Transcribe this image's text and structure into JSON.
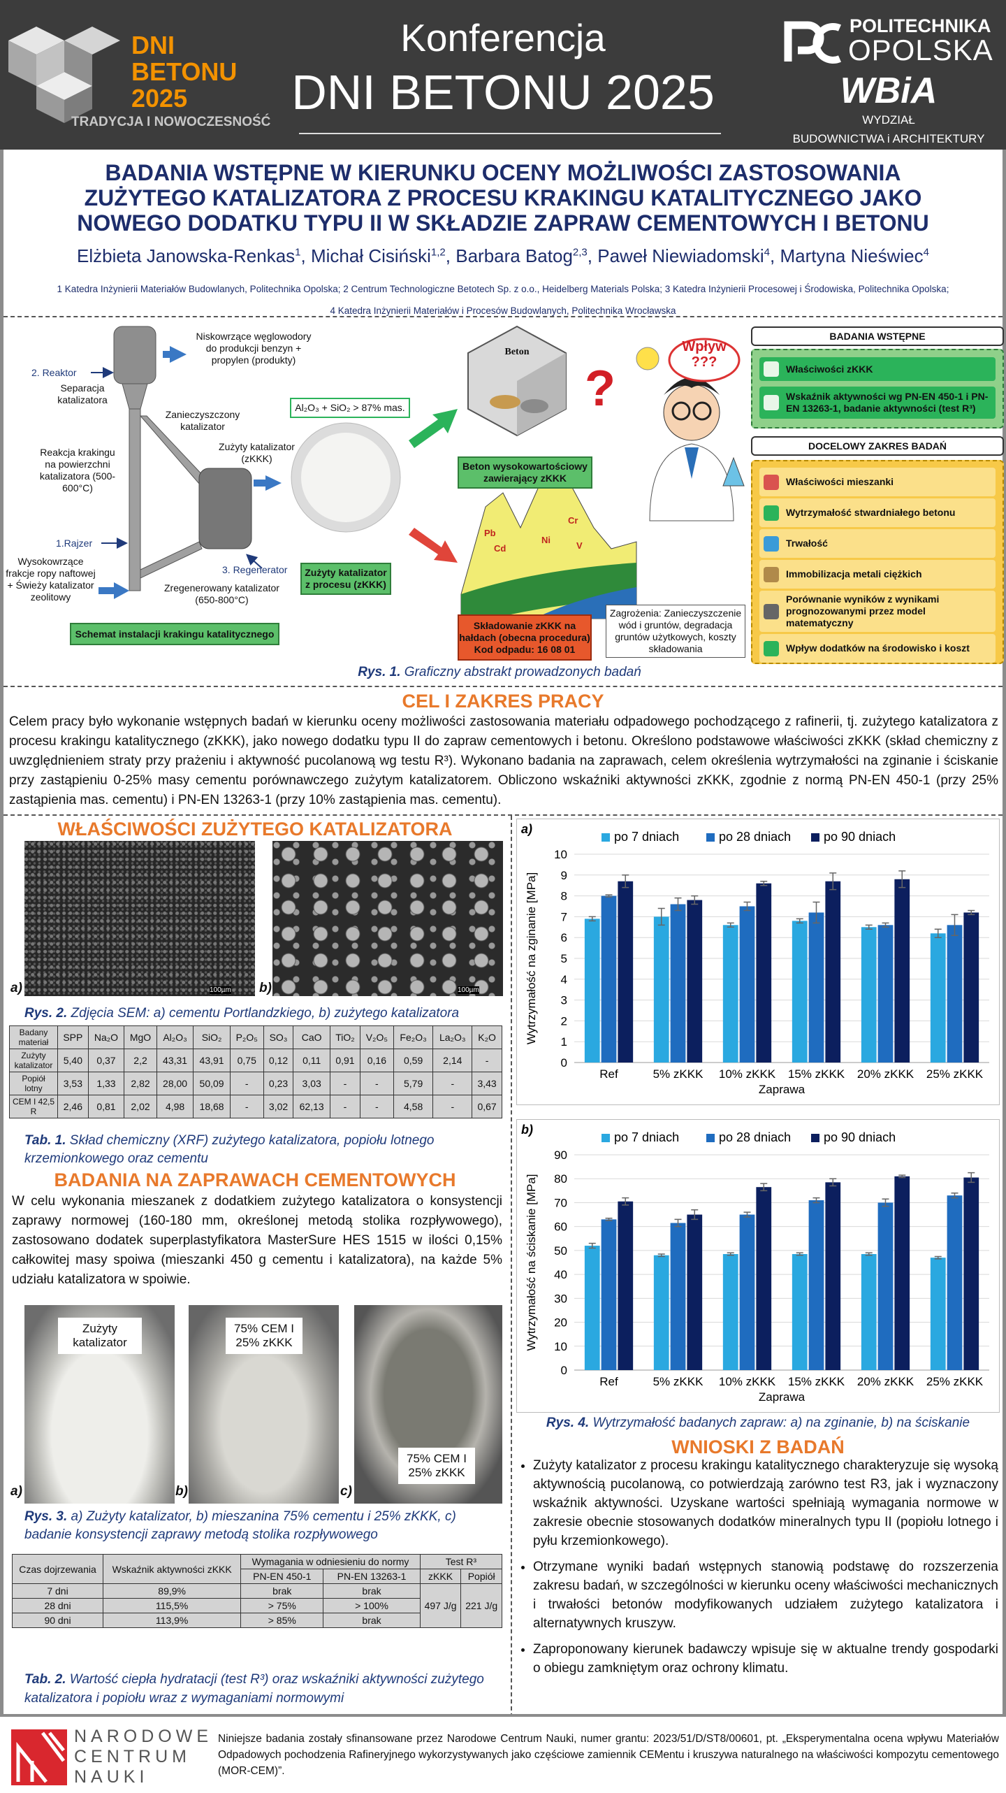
{
  "header": {
    "logo_line1": "DNI",
    "logo_line2": "BETONU",
    "logo_line3": "2025",
    "logo_tagline": "TRADYCJA I NOWOCZESNOŚĆ",
    "conf_line1": "Konferencja",
    "conf_line2": "DNI BETONU 2025",
    "univ_line1": "POLITECHNIKA",
    "univ_line2": "OPOLSKA",
    "faculty_logo": "WBiA",
    "faculty_line1": "WYDZIAŁ",
    "faculty_line2": "BUDOWNICTWA i ARCHITEKTURY"
  },
  "title": [
    "BADANIA WSTĘPNE W KIERUNKU OCENY MOŻLIWOŚCI ZASTOSOWANIA",
    "ZUŻYTEGO KATALIZATORA Z PROCESU KRAKINGU KATALITYCZNEGO JAKO",
    "NOWEGO DODATKU TYPU II W SKŁADZIE ZAPRAW CEMENTOWYCH I BETONU"
  ],
  "authors": [
    {
      "name": "Elżbieta Janowska-Renkas",
      "sup": "1",
      "sep": ","
    },
    {
      "name": "Michał Cisiński",
      "sup": "1,2",
      "sep": ","
    },
    {
      "name": "Barbara Batog",
      "sup": "2,3",
      "sep": ","
    },
    {
      "name": "Paweł Niewiadomski",
      "sup": "4",
      "sep": ","
    },
    {
      "name": "Martyna Nieświec",
      "sup": "4"
    }
  ],
  "affiliations": [
    "1 Katedra Inżynierii Materiałów Budowlanych, Politechnika Opolska; 2 Centrum Technologiczne Betotech Sp. z o.o., Heidelberg Materials Polska; 3 Katedra Inżynierii Procesowej i Środowiska, Politechnika Opolska;",
    "4 Katedra Inżynierii Materiałów i Procesów Budowlanych, Politechnika Wrocławska"
  ],
  "abstract": {
    "products": "Niskowrzące węglowodory do produkcji benzyn + propylen (produkty)",
    "reactor": "2. Reaktor",
    "separation": "Separacja katalizatora",
    "contaminated": "Zanieczyszczony katalizator",
    "reaction": "Reakcja krakingu na powierzchni katalizatora (500-600°C)",
    "spent": "Zużyty katalizator (zKKK)",
    "riser": "1.Rajzer",
    "regenerator": "3. Regenerator",
    "feed": "Wysokowrzące frakcje ropy naftowej + Świeży katalizator zeolitowy",
    "regenerated": "Zregenerowany katalizator (650-800°C)",
    "scheme": "Schemat instalacji krakingu katalitycznego",
    "composition": "Al₂O₃ + SiO₂ > 87% mas.",
    "spent_box": "Zużyty katalizator z procesu (zKKK)",
    "concrete": "Beton",
    "concrete_box": "Beton wysokowartościowy zawierający zKKK",
    "question": "?",
    "bubble1": "Wpływ",
    "bubble2": "???",
    "metals": [
      "Pb",
      "Cd",
      "Ni",
      "Cr",
      "V"
    ],
    "storage": "Składowanie zKKK na hałdach (obecna procedura)",
    "waste_code": "Kod odpadu: 16 08 01",
    "threats": "Zagrożenia: Zanieczyszczenie wód i gruntów, degradacja gruntów użytkowych, koszty składowania",
    "prelim_heading": "BADANIA WSTĘPNE",
    "prelim_items": [
      "Właściwości zKKK",
      "Wskaźnik aktywności wg PN-EN 450-1 i PN-EN 13263-1, badanie aktywności (test R³)"
    ],
    "target_heading": "DOCELOWY ZAKRES BADAŃ",
    "target_items": [
      "Właściwości mieszanki",
      "Wytrzymałość stwardniałego betonu",
      "Trwałość",
      "Immobilizacja metali ciężkich",
      "Porównanie wyników z wynikami prognozowanymi przez model matematyczny",
      "Wpływ dodatków na środowisko i koszt"
    ],
    "caption_label": "Rys. 1.",
    "caption": "Graficzny abstrakt prowadzonych badań"
  },
  "aim": {
    "heading": "CEL I ZAKRES PRACY",
    "text": "Celem pracy było wykonanie wstępnych badań w kierunku oceny możliwości zastosowania materiału odpadowego pochodzącego z rafinerii, tj. zużytego katalizatora z procesu krakingu katalitycznego (zKKK), jako nowego dodatku typu II do zapraw cementowych i betonu. Określono podstawowe właściwości zKKK (skład chemiczny z uwzględnieniem straty przy prażeniu i aktywność pucolanową wg testu R³). Wykonano badania na zaprawach, celem określenia wytrzymałości na zginanie i ściskanie przy zastąpieniu 0-25% masy cementu porównawczego zużytym katalizatorem. Obliczono wskaźniki aktywności zKKK, zgodnie z normą PN-EN 450-1 (przy 25% zastąpienia mas. cementu) i PN-EN 13263-1 (przy 10% zastąpienia mas. cementu)."
  },
  "catalyst": {
    "heading": "WŁAŚCIWOŚCI ZUŻYTEGO KATALIZATORA",
    "label_a": "a)",
    "label_b": "b)",
    "scale": "100µm",
    "caption_label": "Rys. 2.",
    "caption": "Zdjęcia SEM: a) cementu Portlandzkiego, b) zużytego katalizatora",
    "table": {
      "header": [
        "Badany materiał",
        "SPP",
        "Na₂O",
        "MgO",
        "Al₂O₃",
        "SiO₂",
        "P₂O₅",
        "SO₃",
        "CaO",
        "TiO₂",
        "V₂O₅",
        "Fe₂O₃",
        "La₂O₃",
        "K₂O"
      ],
      "rows": [
        [
          "Zużyty katalizator",
          "5,40",
          "0,37",
          "2,2",
          "43,31",
          "43,91",
          "0,75",
          "0,12",
          "0,11",
          "0,91",
          "0,16",
          "0,59",
          "2,14",
          "-"
        ],
        [
          "Popiół lotny",
          "3,53",
          "1,33",
          "2,82",
          "28,00",
          "50,09",
          "-",
          "0,23",
          "3,03",
          "-",
          "-",
          "5,79",
          "-",
          "3,43"
        ],
        [
          "CEM I 42,5 R",
          "2,46",
          "0,81",
          "2,02",
          "4,98",
          "18,68",
          "-",
          "3,02",
          "62,13",
          "-",
          "-",
          "4,58",
          "-",
          "0,67"
        ]
      ]
    },
    "table_caption_label": "Tab. 1.",
    "table_caption": "Skład chemiczny (XRF) zużytego katalizatora, popiołu lotnego krzemionkowego oraz cementu"
  },
  "mortar": {
    "heading": "BADANIA NA ZAPRAWACH CEMENTOWYCH",
    "text": "W celu wykonania mieszanek z dodatkiem zużytego katalizatora o konsystencji zaprawy normowej (160-180 mm, określonej metodą stolika rozpływowego), zastosowano dodatek superplastyfikatora MasterSure HES 1515 w ilości 0,15% całkowitej masy spoiwa (mieszanki 450 g cementu i katalizatora), na każde 5% udziału katalizatora w spoiwie.",
    "photo_a": "Zużyty katalizator",
    "photo_b": "75% CEM I 25% zKKK",
    "photo_c": "75% CEM I 25% zKKK",
    "label_a": "a)",
    "label_b": "b)",
    "label_c": "c)",
    "caption_label": "Rys. 3.",
    "caption": "a) Zużyty katalizator, b) mieszanina 75% cementu i 25% zKKK, c) badanie konsystencji zaprawy metodą stolika rozpływowego",
    "table": {
      "h_time": "Czas dojrzewania",
      "h_index": "Wskaźnik aktywności zKKK",
      "h_req": "Wymagania w odniesieniu do normy",
      "h_r3": "Test R³",
      "h_450": "PN-EN 450-1",
      "h_13263": "PN-EN 13263-1",
      "h_zkkk": "zKKK",
      "h_ash": "Popiół",
      "rows": [
        [
          "7 dni",
          "89,9%",
          "brak",
          "brak"
        ],
        [
          "28 dni",
          "115,5%",
          "> 75%",
          "> 100%"
        ],
        [
          "90 dni",
          "113,9%",
          "> 85%",
          "brak"
        ]
      ],
      "r3_zkkk": "497 J/g",
      "r3_ash": "221 J/g"
    },
    "table_caption_label": "Tab. 2.",
    "table_caption": "Wartość ciepła hydratacji (test R³) oraz wskaźniki aktywności zużytego katalizatora i popiołu wraz z wymaganiami normowymi"
  },
  "chart_data": [
    {
      "type": "bar",
      "panel_label": "a)",
      "ylabel": "Wytrzymałość na zginanie [MPa]",
      "xlabel": "Zaprawa",
      "categories": [
        "Ref",
        "5% zKKK",
        "10% zKKK",
        "15% zKKK",
        "20% zKKK",
        "25% zKKK"
      ],
      "ylim": [
        0,
        10
      ],
      "yticks": [
        0,
        1,
        2,
        3,
        4,
        5,
        6,
        7,
        8,
        9,
        10
      ],
      "grid": true,
      "series": [
        {
          "name": "po 7 dniach",
          "color": "#2aa8e0",
          "values": [
            6.9,
            7.0,
            6.6,
            6.8,
            6.5,
            6.2
          ],
          "errors": [
            0.1,
            0.4,
            0.1,
            0.1,
            0.1,
            0.2
          ]
        },
        {
          "name": "po 28 dniach",
          "color": "#1f6cbf",
          "values": [
            8.0,
            7.6,
            7.5,
            7.2,
            6.6,
            6.6
          ],
          "errors": [
            0.05,
            0.3,
            0.2,
            0.5,
            0.1,
            0.5
          ]
        },
        {
          "name": "po 90 dniach",
          "color": "#0c1f5e",
          "values": [
            8.7,
            7.8,
            8.6,
            8.7,
            8.8,
            7.2
          ],
          "errors": [
            0.3,
            0.2,
            0.1,
            0.4,
            0.4,
            0.1
          ]
        }
      ]
    },
    {
      "type": "bar",
      "panel_label": "b)",
      "ylabel": "Wytrzymałość na ściskanie [MPa]",
      "xlabel": "Zaprawa",
      "categories": [
        "Ref",
        "5% zKKK",
        "10% zKKK",
        "15% zKKK",
        "20% zKKK",
        "25% zKKK"
      ],
      "ylim": [
        0,
        90
      ],
      "yticks": [
        0,
        10,
        20,
        30,
        40,
        50,
        60,
        70,
        80,
        90
      ],
      "grid": true,
      "series": [
        {
          "name": "po 7 dniach",
          "color": "#2aa8e0",
          "values": [
            52,
            48,
            48.5,
            48.5,
            48.5,
            47
          ],
          "errors": [
            1,
            0.5,
            0.5,
            0.5,
            0.5,
            0.5
          ]
        },
        {
          "name": "po 28 dniach",
          "color": "#1f6cbf",
          "values": [
            63,
            61.5,
            65,
            71,
            70,
            73
          ],
          "errors": [
            0.5,
            1.5,
            1,
            1,
            1.5,
            1
          ]
        },
        {
          "name": "po 90 dniach",
          "color": "#0c1f5e",
          "values": [
            70.5,
            65,
            76.5,
            78.5,
            81,
            80.5
          ],
          "errors": [
            1.5,
            2,
            1.5,
            1.5,
            0.5,
            2
          ]
        }
      ]
    }
  ],
  "chart_caption_label": "Rys. 4.",
  "chart_caption": "Wytrzymałość badanych zapraw: a) na zginanie, b) na ściskanie",
  "conclusions": {
    "heading": "WNIOSKI Z BADAŃ",
    "items": [
      "Zużyty katalizator z procesu krakingu katalitycznego charakteryzuje się wysoką aktywnością pucolanową, co potwierdzają zarówno test R3, jak i wyznaczony wskaźnik aktywności. Uzyskane wartości spełniają wymagania normowe w zakresie obecnie stosowanych dodatków mineralnych typu II (popiołu lotnego i pyłu krzemionkowego).",
      "Otrzymane wyniki badań wstępnych stanowią podstawę do rozszerzenia zakresu badań, w szczególności w kierunku oceny właściwości mechanicznych i trwałości betonów modyfikowanych udziałem zużytego katalizatora i alternatywnych kruszyw.",
      "Zaproponowany kierunek badawczy wpisuje się w aktualne trendy gospodarki o obiegu zamkniętym oraz ochrony klimatu."
    ]
  },
  "footer": {
    "ncn1": "NARODOWE",
    "ncn2": "CENTRUM",
    "ncn3": "NAUKI",
    "text": "Niniejsze badania zostały sfinansowane przez Narodowe Centrum Nauki, numer grantu: 2023/51/D/ST8/00601, pt. „Eksperymentalna ocena wpływu Materiałów Odpadowych pochodzenia Rafineryjnego wykorzystywanych jako częściowe zamiennik CEMentu i kruszywa naturalnego na właściwości kompozytu cementowego (MOR-CEM)”."
  }
}
